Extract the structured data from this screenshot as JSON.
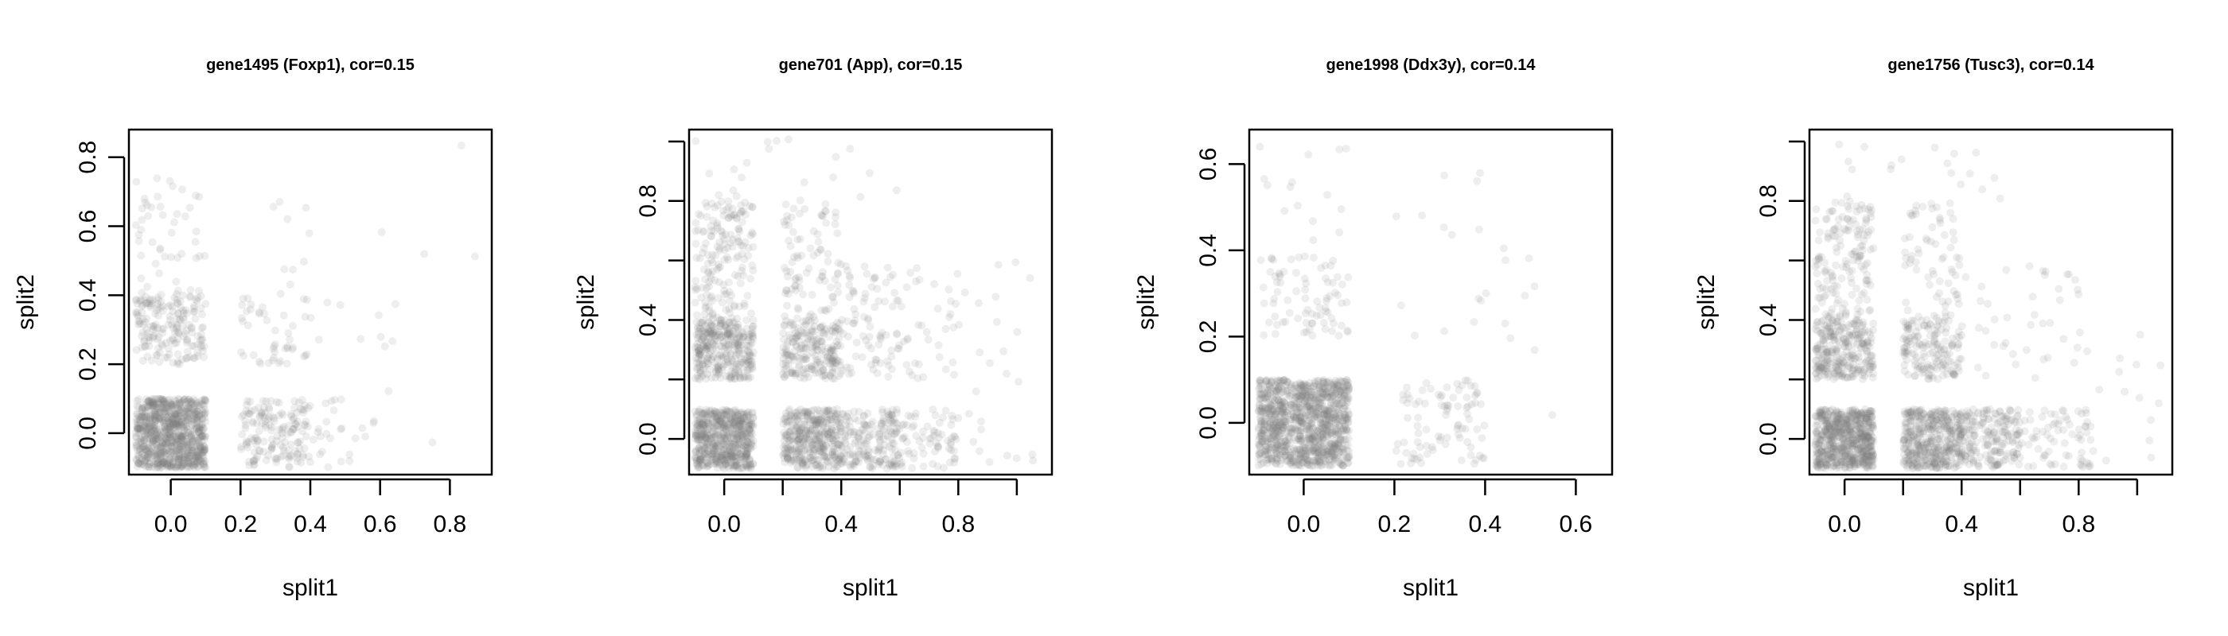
{
  "chart_data": [
    {
      "type": "scatter",
      "title": "gene1495 (Foxp1), cor=0.15",
      "xlabel": "split1",
      "ylabel": "split2",
      "xlim": [
        -0.12,
        0.92
      ],
      "ylim": [
        -0.12,
        0.88
      ],
      "xticks": [
        0.0,
        0.2,
        0.4,
        0.6,
        0.8
      ],
      "xtick_labels": [
        "0.0",
        "0.2",
        "0.4",
        "0.6",
        "0.8"
      ],
      "yticks": [
        0.0,
        0.2,
        0.4,
        0.6,
        0.8
      ],
      "ytick_labels": [
        "0.0",
        "0.2",
        "0.4",
        "0.6",
        "0.8"
      ],
      "point_color": "#7f7f7f",
      "grid": false,
      "clusters": [
        {
          "x": [
            -0.1,
            0.1
          ],
          "y": [
            -0.1,
            0.1
          ],
          "n": 900
        },
        {
          "x": [
            0.2,
            0.4
          ],
          "y": [
            -0.1,
            0.1
          ],
          "n": 160
        },
        {
          "x": [
            -0.1,
            0.1
          ],
          "y": [
            0.2,
            0.4
          ],
          "n": 180
        },
        {
          "x": [
            -0.1,
            0.1
          ],
          "y": [
            0.4,
            0.75
          ],
          "n": 50
        },
        {
          "x": [
            0.4,
            0.6
          ],
          "y": [
            -0.1,
            0.1
          ],
          "n": 25
        },
        {
          "x": [
            0.2,
            0.4
          ],
          "y": [
            0.2,
            0.4
          ],
          "n": 45
        },
        {
          "x": [
            0.25,
            0.4
          ],
          "y": [
            0.4,
            0.68
          ],
          "n": 10
        },
        {
          "x": [
            0.4,
            0.65
          ],
          "y": [
            0.25,
            0.4
          ],
          "n": 10
        },
        {
          "x": [
            0.55,
            0.88
          ],
          "y": [
            -0.08,
            0.85
          ],
          "n": 6
        }
      ]
    },
    {
      "type": "scatter",
      "title": "gene701 (App), cor=0.15",
      "xlabel": "split1",
      "ylabel": "split2",
      "xlim": [
        -0.12,
        1.12
      ],
      "ylim": [
        -0.12,
        1.04
      ],
      "xticks": [
        0.0,
        0.2,
        0.4,
        0.6,
        0.8,
        1.0
      ],
      "xtick_labels": [
        "0.0",
        "",
        "0.4",
        "",
        "0.8",
        ""
      ],
      "yticks": [
        0.0,
        0.2,
        0.4,
        0.6,
        0.8,
        1.0
      ],
      "ytick_labels": [
        "0.0",
        "",
        "0.4",
        "",
        "0.8",
        ""
      ],
      "point_color": "#7f7f7f",
      "grid": false,
      "clusters": [
        {
          "x": [
            -0.1,
            0.1
          ],
          "y": [
            -0.1,
            0.1
          ],
          "n": 600
        },
        {
          "x": [
            0.2,
            0.4
          ],
          "y": [
            -0.1,
            0.1
          ],
          "n": 380
        },
        {
          "x": [
            -0.1,
            0.1
          ],
          "y": [
            0.2,
            0.4
          ],
          "n": 330
        },
        {
          "x": [
            0.4,
            0.6
          ],
          "y": [
            -0.1,
            0.1
          ],
          "n": 180
        },
        {
          "x": [
            0.2,
            0.4
          ],
          "y": [
            0.2,
            0.4
          ],
          "n": 220
        },
        {
          "x": [
            -0.1,
            0.1
          ],
          "y": [
            0.4,
            0.8
          ],
          "n": 170
        },
        {
          "x": [
            0.2,
            0.4
          ],
          "y": [
            0.4,
            0.8
          ],
          "n": 90
        },
        {
          "x": [
            0.4,
            0.6
          ],
          "y": [
            0.2,
            0.6
          ],
          "n": 80
        },
        {
          "x": [
            0.6,
            0.8
          ],
          "y": [
            -0.1,
            0.1
          ],
          "n": 70
        },
        {
          "x": [
            0.6,
            0.8
          ],
          "y": [
            0.2,
            0.6
          ],
          "n": 35
        },
        {
          "x": [
            0.8,
            1.1
          ],
          "y": [
            -0.1,
            0.6
          ],
          "n": 25
        },
        {
          "x": [
            -0.1,
            0.6
          ],
          "y": [
            0.8,
            1.02
          ],
          "n": 20
        }
      ]
    },
    {
      "type": "scatter",
      "title": "gene1998 (Ddx3y), cor=0.14",
      "xlabel": "split1",
      "ylabel": "split2",
      "xlim": [
        -0.12,
        0.68
      ],
      "ylim": [
        -0.12,
        0.68
      ],
      "xticks": [
        0.0,
        0.2,
        0.4,
        0.6
      ],
      "xtick_labels": [
        "0.0",
        "0.2",
        "0.4",
        "0.6"
      ],
      "yticks": [
        0.0,
        0.2,
        0.4,
        0.6
      ],
      "ytick_labels": [
        "0.0",
        "0.2",
        "0.4",
        "0.6"
      ],
      "point_color": "#7f7f7f",
      "grid": false,
      "clusters": [
        {
          "x": [
            -0.1,
            0.1
          ],
          "y": [
            -0.1,
            0.1
          ],
          "n": 1100
        },
        {
          "x": [
            0.2,
            0.4
          ],
          "y": [
            -0.1,
            0.1
          ],
          "n": 90
        },
        {
          "x": [
            -0.1,
            0.1
          ],
          "y": [
            0.2,
            0.4
          ],
          "n": 80
        },
        {
          "x": [
            -0.1,
            0.1
          ],
          "y": [
            0.4,
            0.66
          ],
          "n": 15
        },
        {
          "x": [
            0.2,
            0.45
          ],
          "y": [
            0.2,
            0.58
          ],
          "n": 18
        },
        {
          "x": [
            0.45,
            0.62
          ],
          "y": [
            -0.06,
            0.5
          ],
          "n": 6
        }
      ]
    },
    {
      "type": "scatter",
      "title": "gene1756 (Tusc3), cor=0.14",
      "xlabel": "split1",
      "ylabel": "split2",
      "xlim": [
        -0.12,
        1.12
      ],
      "ylim": [
        -0.12,
        1.04
      ],
      "xticks": [
        0.0,
        0.2,
        0.4,
        0.6,
        0.8,
        1.0
      ],
      "xtick_labels": [
        "0.0",
        "",
        "0.4",
        "",
        "0.8",
        ""
      ],
      "yticks": [
        0.0,
        0.2,
        0.4,
        0.6,
        0.8,
        1.0
      ],
      "ytick_labels": [
        "0.0",
        "",
        "0.4",
        "",
        "0.8",
        ""
      ],
      "point_color": "#7f7f7f",
      "grid": false,
      "clusters": [
        {
          "x": [
            -0.1,
            0.1
          ],
          "y": [
            -0.1,
            0.1
          ],
          "n": 650
        },
        {
          "x": [
            0.2,
            0.4
          ],
          "y": [
            -0.1,
            0.1
          ],
          "n": 420
        },
        {
          "x": [
            0.4,
            0.6
          ],
          "y": [
            -0.1,
            0.1
          ],
          "n": 190
        },
        {
          "x": [
            -0.1,
            0.1
          ],
          "y": [
            0.2,
            0.4
          ],
          "n": 280
        },
        {
          "x": [
            0.2,
            0.4
          ],
          "y": [
            0.2,
            0.4
          ],
          "n": 160
        },
        {
          "x": [
            -0.1,
            0.1
          ],
          "y": [
            0.4,
            0.8
          ],
          "n": 160
        },
        {
          "x": [
            0.2,
            0.4
          ],
          "y": [
            0.4,
            0.8
          ],
          "n": 70
        },
        {
          "x": [
            0.6,
            0.85
          ],
          "y": [
            -0.1,
            0.1
          ],
          "n": 70
        },
        {
          "x": [
            0.4,
            0.8
          ],
          "y": [
            0.2,
            0.6
          ],
          "n": 40
        },
        {
          "x": [
            0.8,
            1.1
          ],
          "y": [
            -0.1,
            0.4
          ],
          "n": 15
        },
        {
          "x": [
            -0.1,
            0.6
          ],
          "y": [
            0.8,
            1.0
          ],
          "n": 18
        }
      ]
    }
  ]
}
